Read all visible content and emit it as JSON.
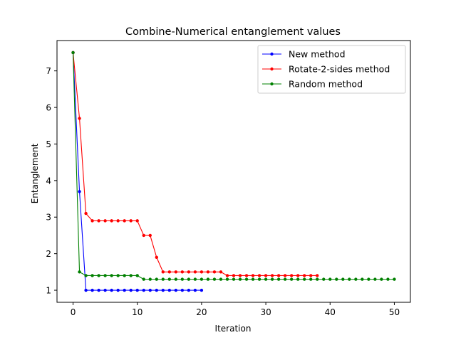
{
  "chart_data": {
    "type": "line",
    "title": "Combine-Numerical entanglement values",
    "xlabel": "Iteration",
    "ylabel": "Entanglement",
    "xlim": [
      -2.5,
      52.5
    ],
    "ylim": [
      0.67,
      7.83
    ],
    "xticks": [
      0,
      10,
      20,
      30,
      40,
      50
    ],
    "yticks": [
      1,
      2,
      3,
      4,
      5,
      6,
      7
    ],
    "grid": false,
    "legend_position": "top-right",
    "series": [
      {
        "name": "New method",
        "color": "#0000ff",
        "x": [
          0,
          1,
          2,
          3,
          4,
          5,
          6,
          7,
          8,
          9,
          10,
          11,
          12,
          13,
          14,
          15,
          16,
          17,
          18,
          19,
          20
        ],
        "y": [
          7.5,
          3.7,
          1.0,
          1.0,
          1.0,
          1.0,
          1.0,
          1.0,
          1.0,
          1.0,
          1.0,
          1.0,
          1.0,
          1.0,
          1.0,
          1.0,
          1.0,
          1.0,
          1.0,
          1.0,
          1.0
        ]
      },
      {
        "name": "Rotate-2-sides method",
        "color": "#ff0000",
        "x": [
          0,
          1,
          2,
          3,
          4,
          5,
          6,
          7,
          8,
          9,
          10,
          11,
          12,
          13,
          14,
          15,
          16,
          17,
          18,
          19,
          20,
          21,
          22,
          23,
          24,
          25,
          26,
          27,
          28,
          29,
          30,
          31,
          32,
          33,
          34,
          35,
          36,
          37,
          38
        ],
        "y": [
          7.5,
          5.7,
          3.1,
          2.9,
          2.9,
          2.9,
          2.9,
          2.9,
          2.9,
          2.9,
          2.9,
          2.5,
          2.5,
          1.9,
          1.5,
          1.5,
          1.5,
          1.5,
          1.5,
          1.5,
          1.5,
          1.5,
          1.5,
          1.5,
          1.4,
          1.4,
          1.4,
          1.4,
          1.4,
          1.4,
          1.4,
          1.4,
          1.4,
          1.4,
          1.4,
          1.4,
          1.4,
          1.4,
          1.4
        ]
      },
      {
        "name": "Random method",
        "color": "#008000",
        "x": [
          0,
          1,
          2,
          3,
          4,
          5,
          6,
          7,
          8,
          9,
          10,
          11,
          12,
          13,
          14,
          15,
          16,
          17,
          18,
          19,
          20,
          21,
          22,
          23,
          24,
          25,
          26,
          27,
          28,
          29,
          30,
          31,
          32,
          33,
          34,
          35,
          36,
          37,
          38,
          39,
          40,
          41,
          42,
          43,
          44,
          45,
          46,
          47,
          48,
          49,
          50
        ],
        "y": [
          7.5,
          1.5,
          1.4,
          1.4,
          1.4,
          1.4,
          1.4,
          1.4,
          1.4,
          1.4,
          1.4,
          1.3,
          1.3,
          1.3,
          1.3,
          1.3,
          1.3,
          1.3,
          1.3,
          1.3,
          1.3,
          1.3,
          1.3,
          1.3,
          1.3,
          1.3,
          1.3,
          1.3,
          1.3,
          1.3,
          1.3,
          1.3,
          1.3,
          1.3,
          1.3,
          1.3,
          1.3,
          1.3,
          1.3,
          1.3,
          1.3,
          1.3,
          1.3,
          1.3,
          1.3,
          1.3,
          1.3,
          1.3,
          1.3,
          1.3,
          1.3
        ]
      }
    ]
  }
}
